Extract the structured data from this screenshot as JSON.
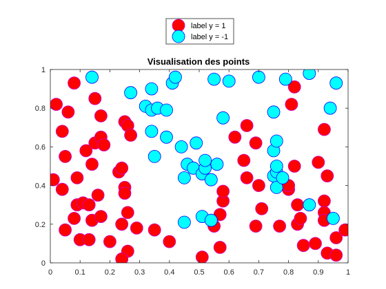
{
  "chart_data": {
    "type": "scatter",
    "title": "Visualisation des points",
    "xlabel": "",
    "ylabel": "",
    "xlim": [
      0,
      1
    ],
    "ylim": [
      0,
      1
    ],
    "xticks": [
      "0",
      "0.1",
      "0.2",
      "0.3",
      "0.4",
      "0.5",
      "0.6",
      "0.7",
      "0.8",
      "0.9",
      "1"
    ],
    "yticks": [
      "0",
      "0.2",
      "0.4",
      "0.6",
      "0.8",
      "1"
    ],
    "grid": false,
    "legend_position": "top-center-outside",
    "series": [
      {
        "name": "label y = 1",
        "fill": "#ff0000",
        "edge": "#cc00cc",
        "points": [
          [
            0.02,
            0.82
          ],
          [
            0.04,
            0.68
          ],
          [
            0.06,
            0.78
          ],
          [
            0.08,
            0.93
          ],
          [
            0.05,
            0.55
          ],
          [
            0.01,
            0.43
          ],
          [
            0.04,
            0.38
          ],
          [
            0.09,
            0.44
          ],
          [
            0.09,
            0.3
          ],
          [
            0.11,
            0.31
          ],
          [
            0.08,
            0.23
          ],
          [
            0.05,
            0.17
          ],
          [
            0.1,
            0.12
          ],
          [
            0.13,
            0.12
          ],
          [
            0.13,
            0.3
          ],
          [
            0.14,
            0.22
          ],
          [
            0.17,
            0.24
          ],
          [
            0.16,
            0.35
          ],
          [
            0.12,
            0.58
          ],
          [
            0.14,
            0.51
          ],
          [
            0.15,
            0.62
          ],
          [
            0.17,
            0.65
          ],
          [
            0.18,
            0.61
          ],
          [
            0.17,
            0.76
          ],
          [
            0.15,
            0.85
          ],
          [
            0.2,
            0.11
          ],
          [
            0.23,
            0.47
          ],
          [
            0.24,
            0.49
          ],
          [
            0.25,
            0.39
          ],
          [
            0.25,
            0.36
          ],
          [
            0.25,
            0.73
          ],
          [
            0.26,
            0.71
          ],
          [
            0.27,
            0.66
          ],
          [
            0.26,
            0.26
          ],
          [
            0.24,
            0.2
          ],
          [
            0.26,
            0.06
          ],
          [
            0.24,
            0.02
          ],
          [
            0.29,
            0.18
          ],
          [
            0.35,
            0.17
          ],
          [
            0.4,
            0.11
          ],
          [
            0.51,
            0.03
          ],
          [
            0.55,
            0.19
          ],
          [
            0.57,
            0.08
          ],
          [
            0.57,
            0.25
          ],
          [
            0.58,
            0.32
          ],
          [
            0.58,
            0.37
          ],
          [
            0.62,
            0.65
          ],
          [
            0.65,
            0.53
          ],
          [
            0.66,
            0.71
          ],
          [
            0.66,
            0.44
          ],
          [
            0.69,
            0.62
          ],
          [
            0.7,
            0.4
          ],
          [
            0.71,
            0.28
          ],
          [
            0.69,
            0.19
          ],
          [
            0.77,
            0.19
          ],
          [
            0.8,
            0.38
          ],
          [
            0.8,
            0.4
          ],
          [
            0.81,
            0.82
          ],
          [
            0.82,
            0.91
          ],
          [
            0.82,
            0.5
          ],
          [
            0.83,
            0.3
          ],
          [
            0.83,
            0.2
          ],
          [
            0.84,
            0.23
          ],
          [
            0.85,
            0.09
          ],
          [
            0.89,
            0.1
          ],
          [
            0.9,
            0.52
          ],
          [
            0.92,
            0.32
          ],
          [
            0.92,
            0.26
          ],
          [
            0.92,
            0.22
          ],
          [
            0.92,
            0.69
          ],
          [
            0.93,
            0.45
          ],
          [
            0.93,
            0.05
          ],
          [
            0.96,
            0.13
          ],
          [
            0.96,
            0.04
          ],
          [
            0.99,
            0.17
          ]
        ]
      },
      {
        "name": "label y = -1",
        "fill": "#00ffff",
        "edge": "#0000ff",
        "points": [
          [
            0.14,
            0.96
          ],
          [
            0.27,
            0.88
          ],
          [
            0.32,
            0.81
          ],
          [
            0.34,
            0.79
          ],
          [
            0.34,
            0.9
          ],
          [
            0.36,
            0.8
          ],
          [
            0.34,
            0.68
          ],
          [
            0.35,
            0.55
          ],
          [
            0.39,
            0.79
          ],
          [
            0.39,
            0.65
          ],
          [
            0.41,
            0.93
          ],
          [
            0.42,
            0.96
          ],
          [
            0.44,
            0.6
          ],
          [
            0.45,
            0.44
          ],
          [
            0.46,
            0.51
          ],
          [
            0.48,
            0.49
          ],
          [
            0.49,
            0.62
          ],
          [
            0.51,
            0.46
          ],
          [
            0.52,
            0.49
          ],
          [
            0.52,
            0.53
          ],
          [
            0.54,
            0.43
          ],
          [
            0.55,
            0.95
          ],
          [
            0.56,
            0.51
          ],
          [
            0.58,
            0.75
          ],
          [
            0.6,
            0.94
          ],
          [
            0.7,
            0.96
          ],
          [
            0.45,
            0.21
          ],
          [
            0.51,
            0.24
          ],
          [
            0.54,
            0.22
          ],
          [
            0.75,
            0.78
          ],
          [
            0.75,
            0.58
          ],
          [
            0.76,
            0.63
          ],
          [
            0.75,
            0.45
          ],
          [
            0.76,
            0.47
          ],
          [
            0.76,
            0.5
          ],
          [
            0.76,
            0.39
          ],
          [
            0.78,
            0.44
          ],
          [
            0.79,
            0.95
          ],
          [
            0.87,
            0.98
          ],
          [
            0.87,
            0.3
          ],
          [
            0.95,
            0.23
          ],
          [
            0.94,
            0.8
          ],
          [
            0.96,
            0.93
          ]
        ]
      }
    ]
  }
}
